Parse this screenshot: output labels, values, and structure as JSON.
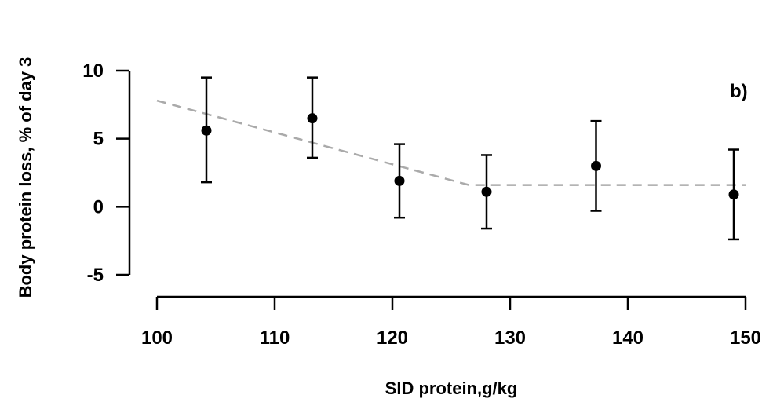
{
  "chart_data": {
    "type": "scatter",
    "panel_label": "b)",
    "xlabel": "SID protein,g/kg",
    "ylabel": "Body protein loss, % of day 3",
    "xlim": [
      100,
      150
    ],
    "ylim": [
      -5,
      10
    ],
    "xticks": [
      "100",
      "110",
      "120",
      "130",
      "140",
      "150"
    ],
    "yticks": [
      "-5",
      "0",
      "5",
      "10"
    ],
    "grid": false,
    "points": [
      {
        "x": 104.2,
        "y": 5.6,
        "lower": 1.8,
        "upper": 9.5
      },
      {
        "x": 113.2,
        "y": 6.5,
        "lower": 3.6,
        "upper": 9.5
      },
      {
        "x": 120.6,
        "y": 1.9,
        "lower": -0.8,
        "upper": 4.6
      },
      {
        "x": 128.0,
        "y": 1.1,
        "lower": -1.6,
        "upper": 3.8
      },
      {
        "x": 137.3,
        "y": 3.0,
        "lower": -0.3,
        "upper": 6.3
      },
      {
        "x": 149.0,
        "y": 0.9,
        "lower": -2.4,
        "upper": 4.2
      }
    ],
    "fit_line": {
      "style": "dashed",
      "color": "#aaaaaa",
      "points": [
        {
          "x": 100,
          "y": 7.8
        },
        {
          "x": 126.5,
          "y": 1.6
        },
        {
          "x": 150,
          "y": 1.6
        }
      ]
    },
    "colors": {
      "points": "#000000",
      "errorbars": "#000000"
    }
  }
}
